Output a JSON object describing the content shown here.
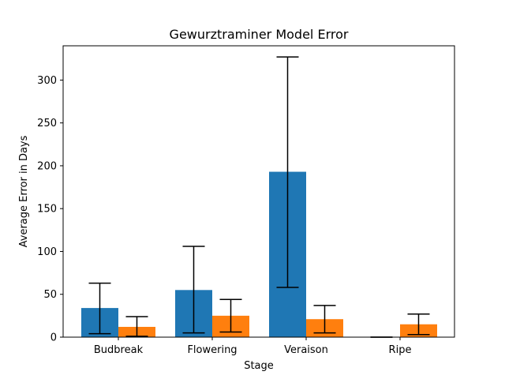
{
  "chart_data": {
    "type": "bar",
    "title": "Gewurztraminer Model Error",
    "xlabel": "Stage",
    "ylabel": "Average Error in Days",
    "categories": [
      "Budbreak",
      "Flowering",
      "Veraison",
      "Ripe"
    ],
    "ylim": [
      0,
      340
    ],
    "yticks": [
      0,
      50,
      100,
      150,
      200,
      250,
      300
    ],
    "grid": false,
    "series": [
      {
        "color": "#1f77b4",
        "values": [
          34,
          55,
          193,
          0
        ],
        "error_low": [
          4,
          5,
          58,
          0
        ],
        "error_high": [
          63,
          106,
          327,
          0
        ]
      },
      {
        "color": "#ff7f0e",
        "values": [
          12,
          25,
          21,
          15
        ],
        "error_low": [
          1,
          6,
          5,
          3
        ],
        "error_high": [
          24,
          44,
          37,
          27
        ]
      }
    ]
  }
}
